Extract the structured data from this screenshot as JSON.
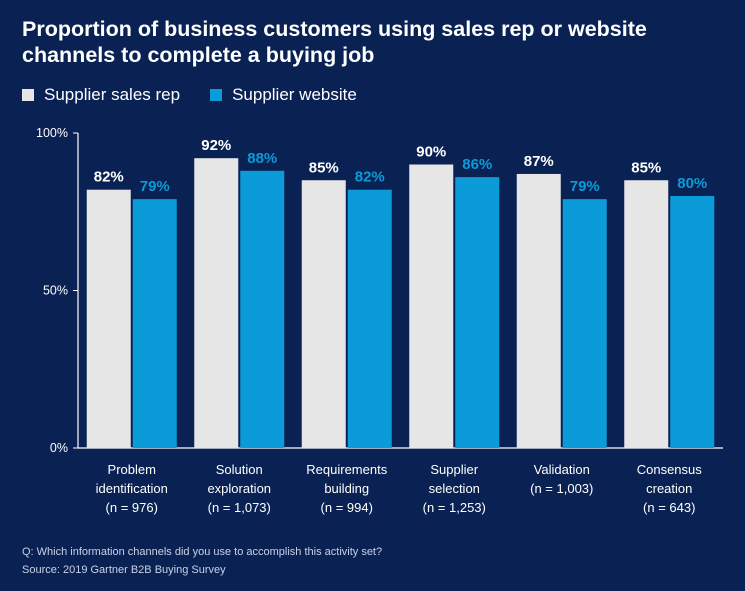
{
  "title": "Proportion of business customers using sales rep or website channels to complete a buying job",
  "legend": [
    {
      "label": "Supplier sales rep",
      "color": "#e6e6e6"
    },
    {
      "label": "Supplier website",
      "color": "#0b9bd8"
    }
  ],
  "chart_data": {
    "type": "bar",
    "categories": [
      [
        "Problem",
        "identification",
        "(n = 976)"
      ],
      [
        "Solution",
        "exploration",
        "(n = 1,073)"
      ],
      [
        "Requirements",
        "building",
        "(n = 994)"
      ],
      [
        "Supplier",
        "selection",
        "(n = 1,253)"
      ],
      [
        "Validation",
        "(n = 1,003)"
      ],
      [
        "Consensus",
        "creation",
        "(n = 643)"
      ]
    ],
    "series": [
      {
        "name": "Supplier sales rep",
        "values": [
          82,
          92,
          85,
          90,
          87,
          85
        ],
        "labels": [
          "82%",
          "92%",
          "85%",
          "90%",
          "87%",
          "85%"
        ],
        "color": "#e6e6e6",
        "label_color": "#ffffff"
      },
      {
        "name": "Supplier website",
        "values": [
          79,
          88,
          82,
          86,
          79,
          80
        ],
        "labels": [
          "79%",
          "88%",
          "82%",
          "86%",
          "79%",
          "80%"
        ],
        "color": "#0b9bd8",
        "label_color": "#0b9bd8"
      }
    ],
    "yticks": [
      0,
      50,
      100
    ],
    "ytick_labels": [
      "0%",
      "50%",
      "100%"
    ],
    "ylim": [
      0,
      100
    ],
    "grid": false,
    "legend_position": "top-left"
  },
  "footnotes": {
    "question": "Q: Which information channels did you use to accomplish this activity set?",
    "source": "Source: 2019 Gartner B2B Buying Survey"
  }
}
